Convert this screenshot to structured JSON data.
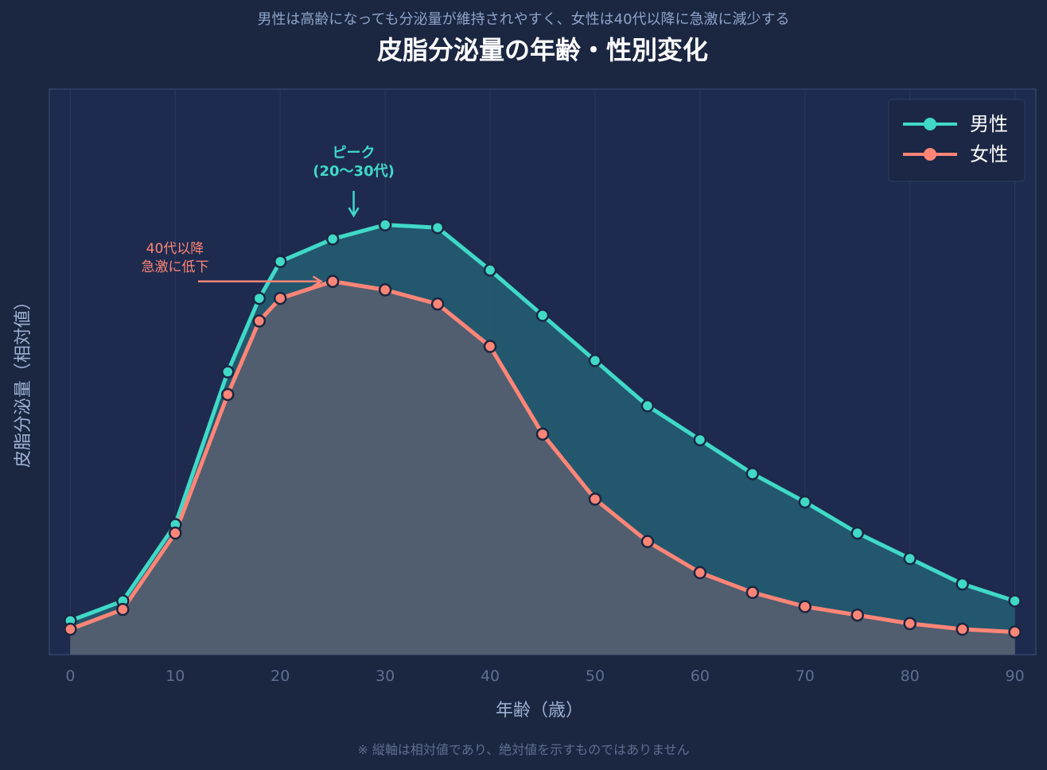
{
  "chart_data": {
    "type": "area",
    "subtitle": "男性は高齢になっても分泌量が維持されやすく、女性は40代以降に急激に減少する",
    "title": "皮脂分泌量の年齢・性別変化",
    "xlabel": "年齢（歳）",
    "ylabel": "皮脂分泌量（相対値）",
    "footnote": "※ 縦軸は相対値であり、絶対値を示すものではありません",
    "xlim": [
      -2,
      92
    ],
    "ylim": [
      0,
      100
    ],
    "x_ticks": [
      0,
      10,
      20,
      30,
      40,
      50,
      60,
      70,
      80,
      90
    ],
    "grid": true,
    "legend_position": "top-right",
    "x": [
      0,
      5,
      10,
      15,
      18,
      20,
      25,
      30,
      35,
      40,
      45,
      50,
      55,
      60,
      65,
      70,
      75,
      80,
      85,
      90
    ],
    "series": [
      {
        "name": "男性",
        "color": "#40d9c8",
        "fill": "#245a70",
        "values": [
          6,
          9.5,
          23,
          50,
          63,
          69.5,
          73.5,
          76,
          75.5,
          68,
          60,
          52,
          44,
          38,
          32,
          27,
          21.5,
          17,
          12.5,
          9.5
        ]
      },
      {
        "name": "女性",
        "color": "#ff8577",
        "fill": "#525e6f",
        "values": [
          4.5,
          8,
          21.5,
          46,
          59,
          63,
          66,
          64.5,
          62,
          54.5,
          39,
          27.5,
          20,
          14.5,
          11,
          8.5,
          7,
          5.5,
          4.5,
          4
        ]
      }
    ],
    "annotations": [
      {
        "id": "peak",
        "lines": [
          "ピーク",
          "(20〜30代)"
        ],
        "color": "#40d9c8",
        "target_x": 27,
        "target_y": 76.5
      },
      {
        "id": "decline",
        "lines": [
          "40代以降",
          "急激に低下"
        ],
        "color": "#ff8577",
        "target_x": 24.5,
        "target_y": 66
      }
    ]
  }
}
